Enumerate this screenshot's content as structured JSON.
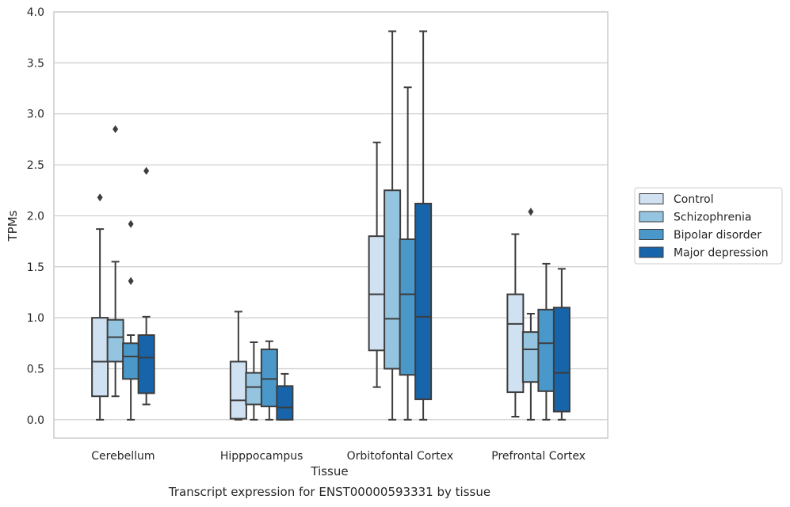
{
  "chart_data": {
    "type": "boxplot",
    "caption": "Transcript expression for ENST00000593331 by tissue",
    "xlabel": "Tissue",
    "ylabel": "TPMs",
    "ylim": [
      -0.18,
      4.0
    ],
    "yticks": [
      0.0,
      0.5,
      1.0,
      1.5,
      2.0,
      2.5,
      3.0,
      3.5,
      4.0
    ],
    "ytick_labels": [
      "0.0",
      "0.5",
      "1.0",
      "1.5",
      "2.0",
      "2.5",
      "3.0",
      "3.5",
      "4.0"
    ],
    "grid": "horizontal",
    "legend_position": "right",
    "categories": [
      "Cerebellum",
      "Hipppocampus",
      "Orbitofontal Cortex",
      "Prefrontal Cortex"
    ],
    "series": [
      {
        "name": "Control",
        "color": "#d0e1f2",
        "boxes": [
          {
            "whislo": 0.0,
            "q1": 0.23,
            "med": 0.57,
            "q3": 1.0,
            "whishi": 1.87,
            "fliers": [
              2.18
            ]
          },
          {
            "whislo": 0.0,
            "q1": 0.01,
            "med": 0.19,
            "q3": 0.57,
            "whishi": 1.06,
            "fliers": []
          },
          {
            "whislo": 0.32,
            "q1": 0.68,
            "med": 1.23,
            "q3": 1.8,
            "whishi": 2.72,
            "fliers": []
          },
          {
            "whislo": 0.03,
            "q1": 0.27,
            "med": 0.94,
            "q3": 1.23,
            "whishi": 1.82,
            "fliers": []
          }
        ]
      },
      {
        "name": "Schizophrenia",
        "color": "#94c4df",
        "boxes": [
          {
            "whislo": 0.23,
            "q1": 0.57,
            "med": 0.81,
            "q3": 0.98,
            "whishi": 1.55,
            "fliers": [
              2.85
            ]
          },
          {
            "whislo": 0.0,
            "q1": 0.15,
            "med": 0.32,
            "q3": 0.46,
            "whishi": 0.76,
            "fliers": []
          },
          {
            "whislo": 0.0,
            "q1": 0.5,
            "med": 0.99,
            "q3": 2.25,
            "whishi": 3.81,
            "fliers": []
          },
          {
            "whislo": 0.0,
            "q1": 0.37,
            "med": 0.69,
            "q3": 0.86,
            "whishi": 1.04,
            "fliers": [
              2.04
            ]
          }
        ]
      },
      {
        "name": "Bipolar disorder",
        "color": "#4a98c9",
        "boxes": [
          {
            "whislo": 0.0,
            "q1": 0.4,
            "med": 0.62,
            "q3": 0.75,
            "whishi": 0.83,
            "fliers": [
              1.36,
              1.92
            ]
          },
          {
            "whislo": 0.0,
            "q1": 0.13,
            "med": 0.4,
            "q3": 0.69,
            "whishi": 0.77,
            "fliers": []
          },
          {
            "whislo": 0.0,
            "q1": 0.44,
            "med": 1.23,
            "q3": 1.77,
            "whishi": 3.26,
            "fliers": []
          },
          {
            "whislo": 0.0,
            "q1": 0.28,
            "med": 0.75,
            "q3": 1.08,
            "whishi": 1.53,
            "fliers": []
          }
        ]
      },
      {
        "name": "Major depression",
        "color": "#1764ab",
        "boxes": [
          {
            "whislo": 0.15,
            "q1": 0.26,
            "med": 0.61,
            "q3": 0.83,
            "whishi": 1.01,
            "fliers": [
              2.44
            ]
          },
          {
            "whislo": 0.0,
            "q1": 0.0,
            "med": 0.12,
            "q3": 0.33,
            "whishi": 0.45,
            "fliers": []
          },
          {
            "whislo": 0.0,
            "q1": 0.2,
            "med": 1.01,
            "q3": 2.12,
            "whishi": 3.81,
            "fliers": []
          },
          {
            "whislo": 0.0,
            "q1": 0.08,
            "med": 0.46,
            "q3": 1.1,
            "whishi": 1.48,
            "fliers": []
          }
        ]
      }
    ]
  }
}
